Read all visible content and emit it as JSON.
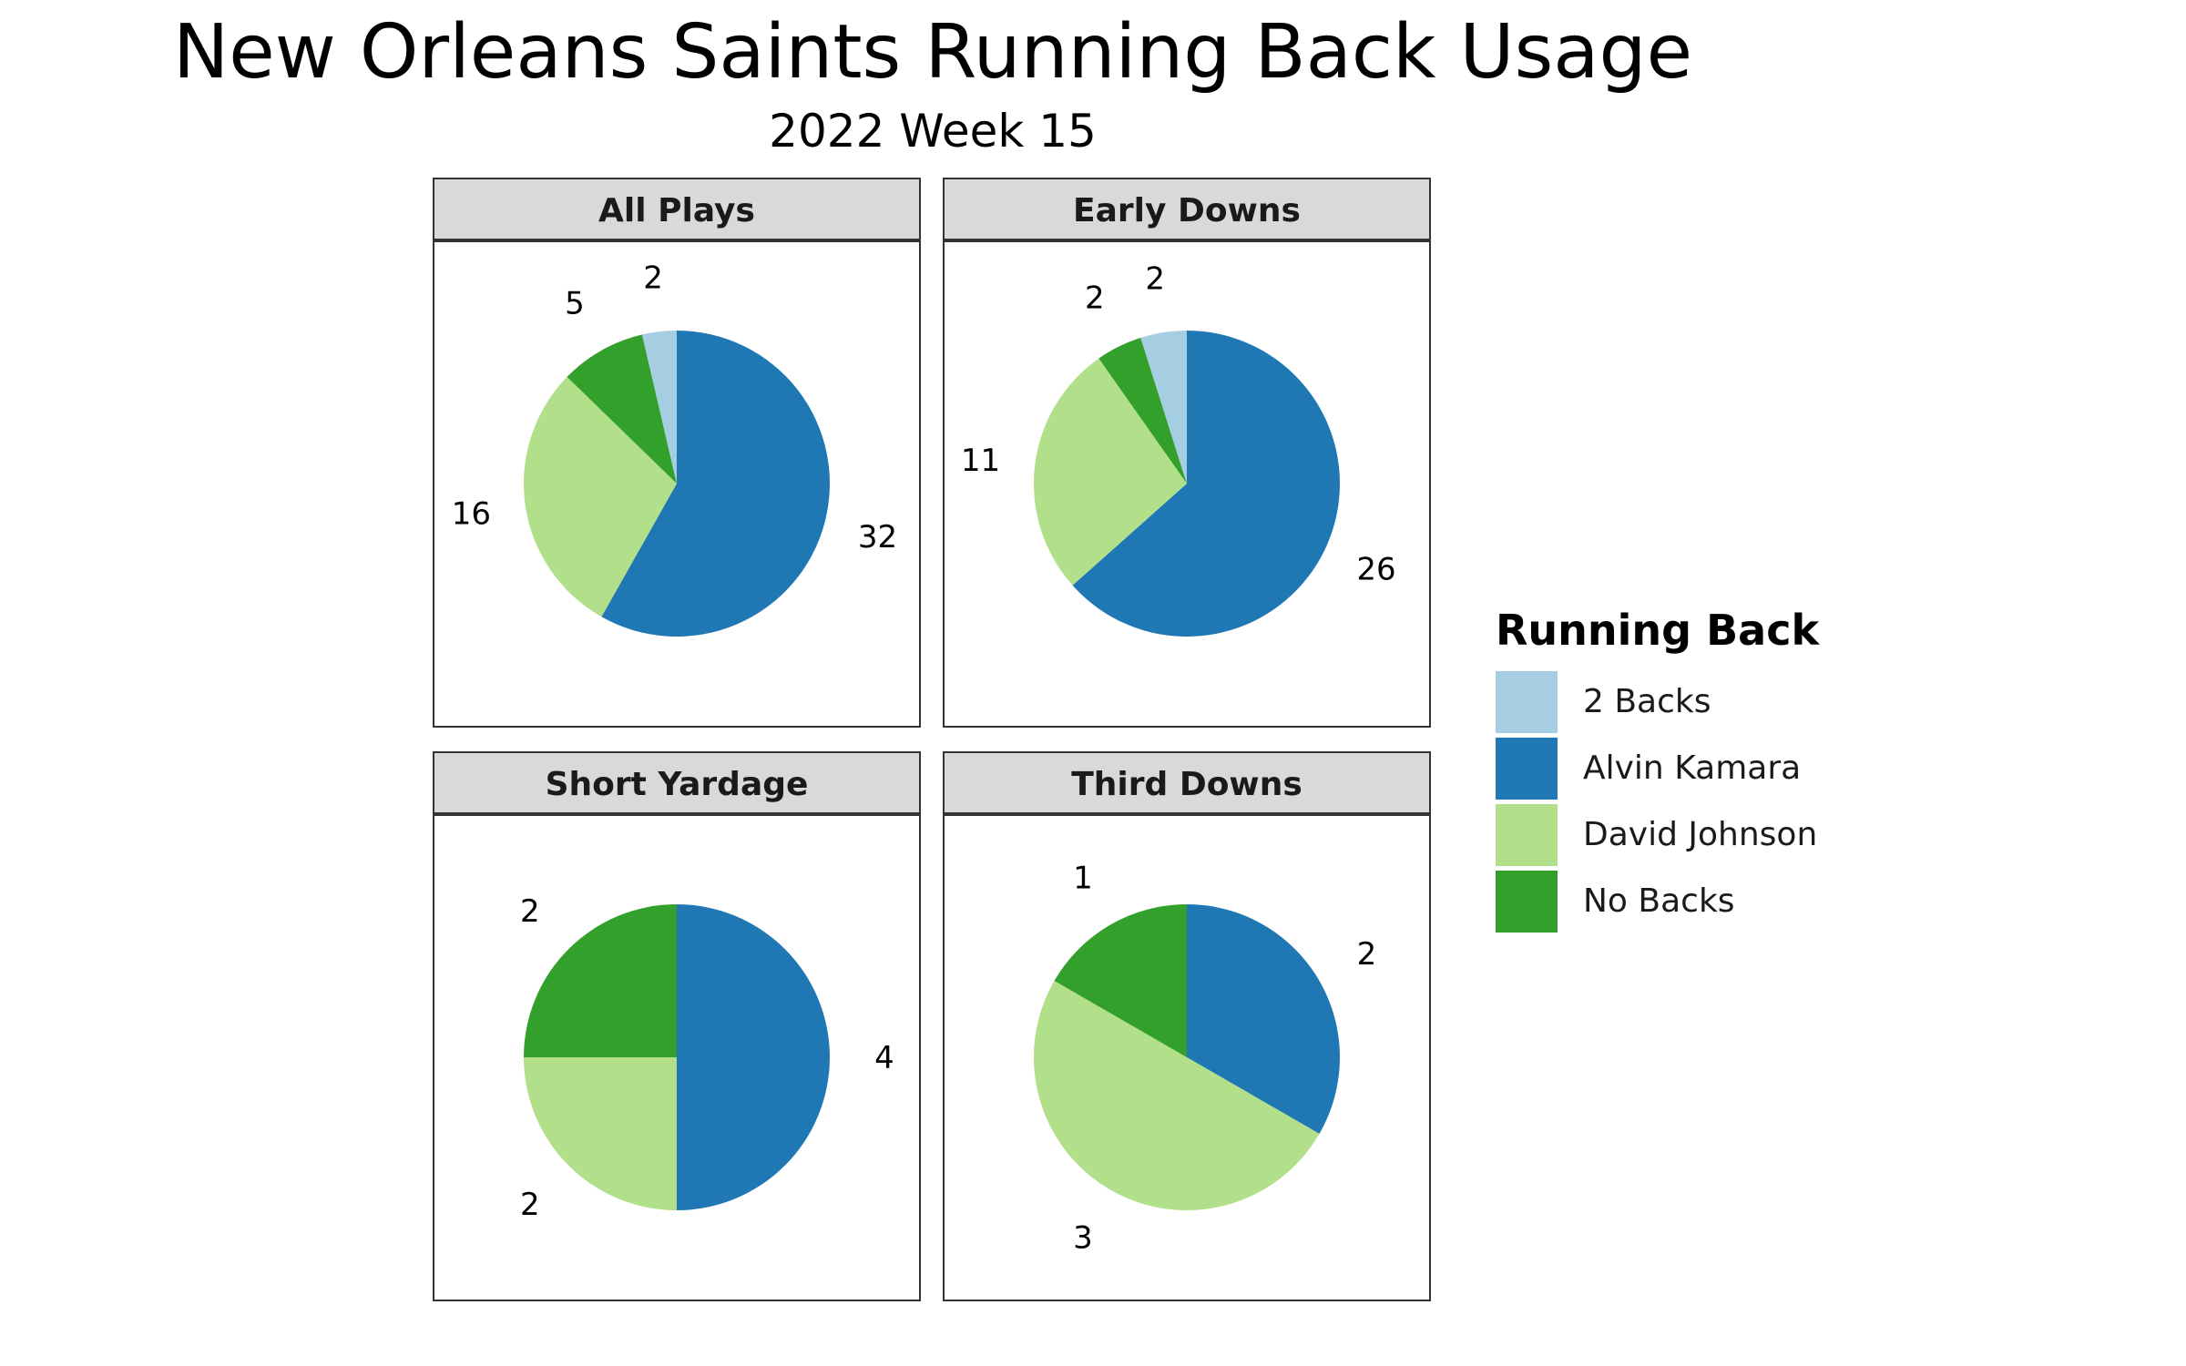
{
  "chart_data": {
    "type": "pie",
    "title": "New Orleans Saints Running Back Usage",
    "subtitle": "2022 Week 15",
    "legend": {
      "title": "Running Back",
      "placement": "right",
      "entries": [
        {
          "name": "2 Backs",
          "color": "#a6cee3"
        },
        {
          "name": "Alvin Kamara",
          "color": "#1f78b4"
        },
        {
          "name": "David Johnson",
          "color": "#b2df8a"
        },
        {
          "name": "No Backs",
          "color": "#33a02c"
        }
      ]
    },
    "panels": [
      {
        "title": "All Plays",
        "slices": [
          {
            "name": "Alvin Kamara",
            "value": 32
          },
          {
            "name": "David Johnson",
            "value": 16
          },
          {
            "name": "No Backs",
            "value": 5
          },
          {
            "name": "2 Backs",
            "value": 2
          }
        ]
      },
      {
        "title": "Early Downs",
        "slices": [
          {
            "name": "Alvin Kamara",
            "value": 26
          },
          {
            "name": "David Johnson",
            "value": 11
          },
          {
            "name": "No Backs",
            "value": 2
          },
          {
            "name": "2 Backs",
            "value": 2
          }
        ]
      },
      {
        "title": "Short Yardage",
        "slices": [
          {
            "name": "Alvin Kamara",
            "value": 4
          },
          {
            "name": "David Johnson",
            "value": 2
          },
          {
            "name": "No Backs",
            "value": 2
          }
        ]
      },
      {
        "title": "Third Downs",
        "slices": [
          {
            "name": "Alvin Kamara",
            "value": 2
          },
          {
            "name": "David Johnson",
            "value": 3
          },
          {
            "name": "No Backs",
            "value": 1
          }
        ]
      }
    ]
  }
}
